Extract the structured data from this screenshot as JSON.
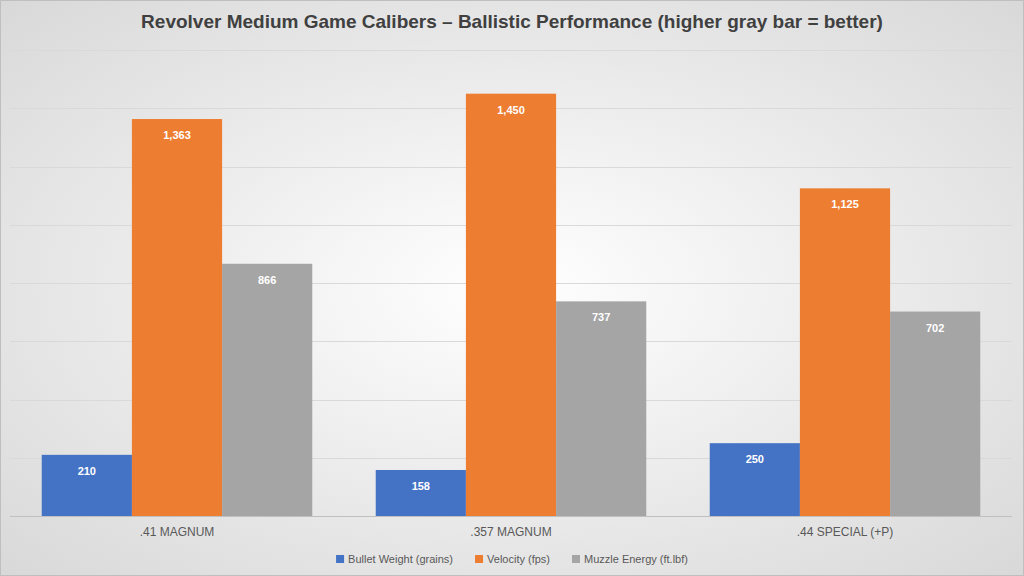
{
  "chart_data": {
    "type": "bar",
    "title": "Revolver Medium Game Calibers – Ballistic Performance (higher gray bar = better)",
    "categories": [
      ".41 MAGNUM",
      ".357 MAGNUM",
      ".44 SPECIAL (+P)"
    ],
    "series": [
      {
        "name": "Bullet Weight (grains)",
        "color": "#4472c4",
        "values": [
          210,
          158,
          250
        ]
      },
      {
        "name": "Velocity (fps)",
        "color": "#ed7d31",
        "values": [
          1363,
          1450,
          1125
        ],
        "value_labels": [
          "1,363",
          "1,450",
          "1,125"
        ]
      },
      {
        "name": "Muzzle Energy (ft.lbf)",
        "color": "#a5a5a5",
        "values": [
          866,
          737,
          702
        ]
      }
    ],
    "ylim": [
      0,
      1600
    ],
    "yticks": [
      0,
      200,
      400,
      600,
      800,
      1000,
      1200,
      1400,
      1600
    ],
    "grid": true,
    "legend": "bottom",
    "data_labels": true,
    "tick_labels": "x"
  }
}
